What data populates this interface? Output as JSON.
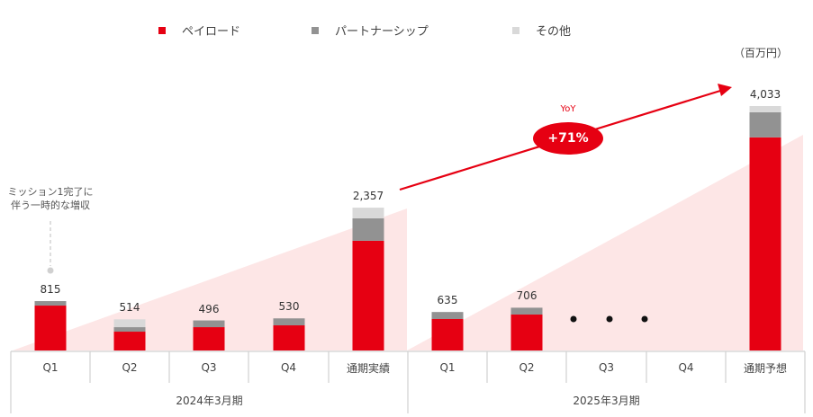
{
  "legend": [
    {
      "label": "ペイロード",
      "color": "#e60012"
    },
    {
      "label": "パートナーシップ",
      "color": "#929292"
    },
    {
      "label": "その他",
      "color": "#d9d9d9"
    }
  ],
  "unit_label": "（百万円）",
  "annotation": {
    "line1": "ミッション1完了に",
    "line2": "伴う一時的な増収"
  },
  "yoy": {
    "label": "YoY",
    "value": "+71%"
  },
  "ellipsis": "• • •",
  "axis": {
    "fy2024": {
      "label": "2024年3月期",
      "cells": [
        "Q1",
        "Q2",
        "Q3",
        "Q4",
        "通期実績"
      ]
    },
    "fy2025": {
      "label": "2025年3月期",
      "cells": [
        "Q1",
        "Q2",
        "Q3",
        "Q4",
        "通期予想"
      ]
    }
  },
  "chart_data": {
    "type": "bar",
    "stacked": true,
    "title": "",
    "unit": "百万円",
    "xlabel": "",
    "ylabel": "",
    "legend_position": "top",
    "grid": false,
    "categories": [
      "2024年3月期 Q1",
      "2024年3月期 Q2",
      "2024年3月期 Q3",
      "2024年3月期 Q4",
      "2024年3月期 通期実績",
      "2025年3月期 Q1",
      "2025年3月期 Q2",
      "2025年3月期 Q3",
      "2025年3月期 Q4",
      "2025年3月期 通期予想"
    ],
    "totals": [
      815,
      514,
      496,
      530,
      2357,
      635,
      706,
      null,
      null,
      4033
    ],
    "total_labels": [
      "815",
      "514",
      "496",
      "530",
      "2,357",
      "635",
      "706",
      "",
      "",
      "4,033"
    ],
    "series": [
      {
        "name": "ペイロード",
        "color": "#e60012",
        "values": [
          741,
          311,
          385,
          415,
          1810,
          519,
          593,
          null,
          null,
          3516
        ]
      },
      {
        "name": "パートナーシップ",
        "color": "#929292",
        "values": [
          74,
          74,
          111,
          115,
          371,
          116,
          113,
          null,
          null,
          415
        ]
      },
      {
        "name": "その他",
        "color": "#d9d9d9",
        "values": [
          0,
          129,
          0,
          0,
          176,
          0,
          0,
          null,
          null,
          102
        ]
      }
    ],
    "annotations": [
      "ミッション1完了に伴う一時的な増収 (Q1 2024年3月期)",
      "YoY +71% (通期実績 → 通期予想)"
    ]
  }
}
